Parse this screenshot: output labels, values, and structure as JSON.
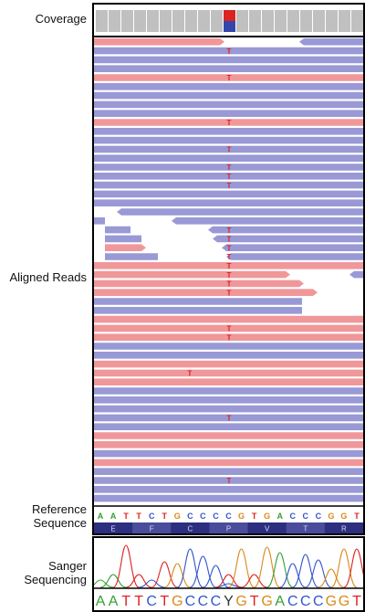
{
  "labels": {
    "coverage": "Coverage",
    "aligned_reads": "Aligned Reads",
    "reference_line1": "Reference",
    "reference_line2": "Sequence",
    "sanger_line1": "Sanger",
    "sanger_line2": "Sequencing"
  },
  "reference_bases": [
    "A",
    "A",
    "T",
    "T",
    "C",
    "T",
    "G",
    "C",
    "C",
    "C",
    "C",
    "G",
    "T",
    "G",
    "A",
    "C",
    "C",
    "C",
    "G",
    "G",
    "T"
  ],
  "amino_acids": [
    "E",
    "F",
    "C",
    "P",
    "V",
    "T",
    "R"
  ],
  "sanger_bases": [
    "A",
    "A",
    "T",
    "T",
    "C",
    "T",
    "G",
    "C",
    "C",
    "C",
    "Y",
    "G",
    "T",
    "G",
    "A",
    "C",
    "C",
    "C",
    "G",
    "G",
    "T"
  ],
  "variant": {
    "alt_base": "T",
    "ref_base": "C",
    "sanger_code": "Y",
    "position_index": 10
  },
  "colors": {
    "read_forward": "#f0979a",
    "read_reverse": "#9999d6",
    "mismatch": "#dd2222",
    "coverage_bar": "#c0c0c0",
    "coverage_alt": "#dd2222",
    "coverage_ref": "#3344aa",
    "base_A": "#33a033",
    "base_C": "#3355cc",
    "base_G": "#d98a1a",
    "base_T": "#dd2222",
    "base_other": "#333333",
    "amino_bg_dark": "#2c2e80",
    "amino_bg_light": "#4a4c9c"
  }
}
